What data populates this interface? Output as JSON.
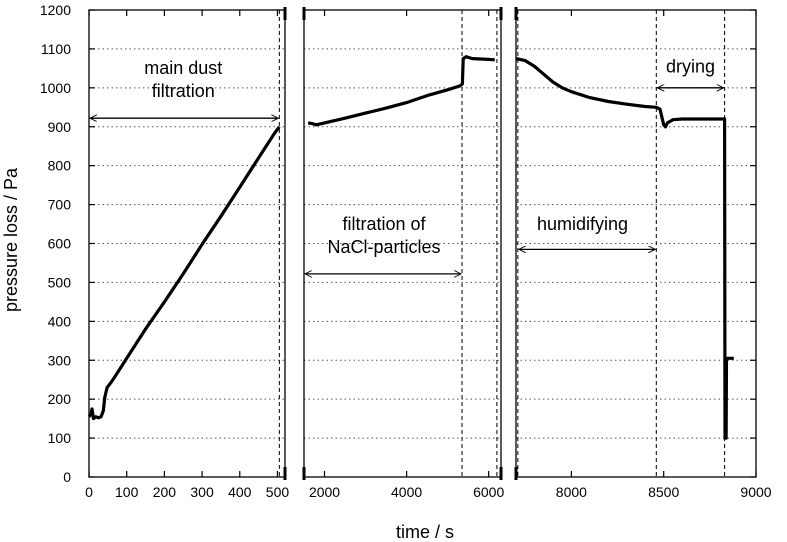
{
  "chart_data": {
    "type": "line",
    "xlabel": "time / s",
    "ylabel": "pressure loss / Pa",
    "ylim": [
      0,
      1200
    ],
    "yticks": [
      0,
      100,
      200,
      300,
      400,
      500,
      600,
      700,
      800,
      900,
      1000,
      1100,
      1200
    ],
    "grid": "horizontal dotted",
    "panels": [
      {
        "xlim": [
          0,
          520
        ],
        "xticks": [
          0,
          100,
          200,
          300,
          400,
          500
        ],
        "xtick_labels": [
          "0",
          "100",
          "200",
          "300",
          "400",
          "500"
        ],
        "points": [
          [
            0,
            155
          ],
          [
            5,
            160
          ],
          [
            8,
            175
          ],
          [
            12,
            150
          ],
          [
            18,
            155
          ],
          [
            25,
            152
          ],
          [
            32,
            155
          ],
          [
            38,
            170
          ],
          [
            42,
            205
          ],
          [
            48,
            230
          ],
          [
            60,
            245
          ],
          [
            80,
            275
          ],
          [
            100,
            305
          ],
          [
            150,
            380
          ],
          [
            200,
            450
          ],
          [
            250,
            522
          ],
          [
            300,
            598
          ],
          [
            350,
            670
          ],
          [
            400,
            745
          ],
          [
            450,
            820
          ],
          [
            490,
            880
          ],
          [
            505,
            900
          ]
        ],
        "markers": [
          505
        ]
      },
      {
        "xlim": [
          1500,
          6300
        ],
        "xticks": [
          2000,
          4000,
          6000
        ],
        "xtick_labels": [
          "2000",
          "4000",
          "6000"
        ],
        "points": [
          [
            1600,
            910
          ],
          [
            1700,
            908
          ],
          [
            1800,
            905
          ],
          [
            2000,
            910
          ],
          [
            2500,
            922
          ],
          [
            3000,
            935
          ],
          [
            3500,
            948
          ],
          [
            4000,
            962
          ],
          [
            4500,
            980
          ],
          [
            5000,
            995
          ],
          [
            5300,
            1005
          ],
          [
            5360,
            1010
          ],
          [
            5380,
            1075
          ],
          [
            5450,
            1080
          ],
          [
            5600,
            1075
          ],
          [
            6000,
            1073
          ],
          [
            6150,
            1072
          ]
        ],
        "markers": [
          5350,
          6200
        ]
      },
      {
        "xlim": [
          7700,
          9000
        ],
        "xticks": [
          8000,
          8500,
          9000
        ],
        "xtick_labels": [
          "8000",
          "8500",
          "9000"
        ],
        "points": [
          [
            7700,
            1075
          ],
          [
            7750,
            1070
          ],
          [
            7800,
            1055
          ],
          [
            7850,
            1035
          ],
          [
            7900,
            1015
          ],
          [
            7950,
            1000
          ],
          [
            8000,
            990
          ],
          [
            8100,
            975
          ],
          [
            8200,
            965
          ],
          [
            8300,
            958
          ],
          [
            8400,
            952
          ],
          [
            8460,
            950
          ],
          [
            8480,
            945
          ],
          [
            8500,
            905
          ],
          [
            8510,
            900
          ],
          [
            8520,
            910
          ],
          [
            8550,
            918
          ],
          [
            8600,
            920
          ],
          [
            8700,
            920
          ],
          [
            8800,
            920
          ],
          [
            8830,
            920
          ],
          [
            8832,
            100
          ],
          [
            8838,
            100
          ],
          [
            8840,
            305
          ],
          [
            8880,
            305
          ]
        ],
        "markers": [
          7710,
          8460,
          8830
        ]
      }
    ],
    "annotations": [
      {
        "panel": 0,
        "lines": [
          "main dust",
          "filtration"
        ],
        "x": 250,
        "y": 1035,
        "arrow": {
          "x1": 0,
          "x2": 505,
          "y": 922
        }
      },
      {
        "panel": 1,
        "lines": [
          "filtration of",
          "NaCl-particles"
        ],
        "x": 3450,
        "y": 635,
        "arrow": {
          "x1": 1500,
          "x2": 5350,
          "y": 522
        }
      },
      {
        "panel": 2,
        "lines": [
          "humidifying"
        ],
        "x": 8060,
        "y": 635,
        "arrow": {
          "x1": 7710,
          "x2": 8460,
          "y": 585
        }
      },
      {
        "panel": 2,
        "lines": [
          "drying"
        ],
        "x": 8645,
        "y": 1040,
        "arrow": {
          "x1": 8460,
          "x2": 8830,
          "y": 1000
        }
      }
    ]
  }
}
